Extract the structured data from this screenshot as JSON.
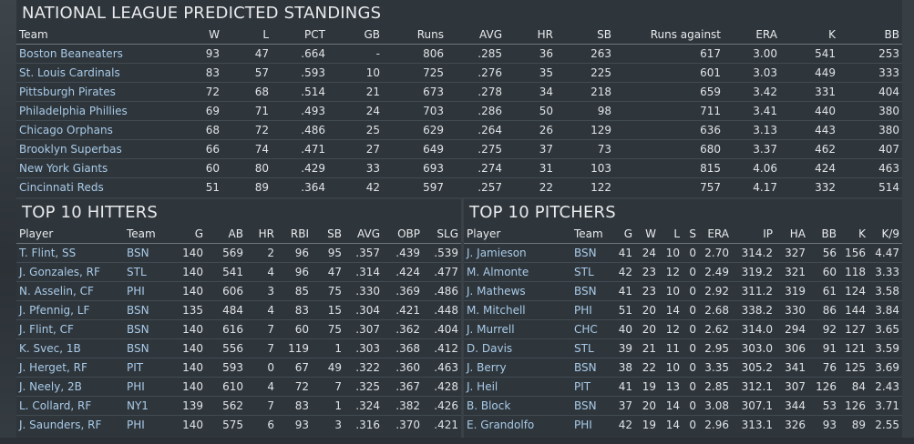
{
  "standings": {
    "title": "NATIONAL LEAGUE PREDICTED STANDINGS",
    "columns": [
      "Team",
      "W",
      "L",
      "PCT",
      "GB",
      "Runs",
      "AVG",
      "HR",
      "SB",
      "Runs against",
      "ERA",
      "K",
      "BB"
    ],
    "rows": [
      [
        "Boston Beaneaters",
        "93",
        "47",
        ".664",
        "-",
        "806",
        ".285",
        "36",
        "263",
        "617",
        "3.00",
        "541",
        "253"
      ],
      [
        "St. Louis Cardinals",
        "83",
        "57",
        ".593",
        "10",
        "725",
        ".276",
        "35",
        "225",
        "601",
        "3.03",
        "449",
        "333"
      ],
      [
        "Pittsburgh Pirates",
        "72",
        "68",
        ".514",
        "21",
        "673",
        ".278",
        "34",
        "218",
        "659",
        "3.42",
        "331",
        "404"
      ],
      [
        "Philadelphia Phillies",
        "69",
        "71",
        ".493",
        "24",
        "703",
        ".286",
        "50",
        "98",
        "711",
        "3.41",
        "440",
        "380"
      ],
      [
        "Chicago Orphans",
        "68",
        "72",
        ".486",
        "25",
        "629",
        ".264",
        "26",
        "129",
        "636",
        "3.13",
        "443",
        "380"
      ],
      [
        "Brooklyn Superbas",
        "66",
        "74",
        ".471",
        "27",
        "649",
        ".275",
        "37",
        "73",
        "680",
        "3.37",
        "462",
        "407"
      ],
      [
        "New York Giants",
        "60",
        "80",
        ".429",
        "33",
        "693",
        ".274",
        "31",
        "103",
        "815",
        "4.06",
        "424",
        "463"
      ],
      [
        "Cincinnati Reds",
        "51",
        "89",
        ".364",
        "42",
        "597",
        ".257",
        "22",
        "122",
        "757",
        "4.17",
        "332",
        "514"
      ]
    ]
  },
  "hitters": {
    "title": "TOP 10 HITTERS",
    "columns": [
      "Player",
      "Team",
      "G",
      "AB",
      "HR",
      "RBI",
      "SB",
      "AVG",
      "OBP",
      "SLG"
    ],
    "rows": [
      [
        "T. Flint, SS",
        "BSN",
        "140",
        "569",
        "2",
        "96",
        "95",
        ".357",
        ".439",
        ".539"
      ],
      [
        "J. Gonzales, RF",
        "STL",
        "140",
        "541",
        "4",
        "96",
        "47",
        ".314",
        ".424",
        ".477"
      ],
      [
        "N. Asselin, CF",
        "PHI",
        "140",
        "606",
        "3",
        "85",
        "75",
        ".330",
        ".369",
        ".486"
      ],
      [
        "J. Pfennig, LF",
        "BSN",
        "135",
        "484",
        "4",
        "83",
        "15",
        ".304",
        ".421",
        ".448"
      ],
      [
        "J. Flint, CF",
        "BSN",
        "140",
        "616",
        "7",
        "60",
        "75",
        ".307",
        ".362",
        ".404"
      ],
      [
        "K. Svec, 1B",
        "BSN",
        "140",
        "556",
        "7",
        "119",
        "1",
        ".303",
        ".368",
        ".412"
      ],
      [
        "J. Herget, RF",
        "PIT",
        "140",
        "593",
        "0",
        "67",
        "49",
        ".322",
        ".360",
        ".463"
      ],
      [
        "J. Neely, 2B",
        "PHI",
        "140",
        "610",
        "4",
        "72",
        "7",
        ".325",
        ".367",
        ".428"
      ],
      [
        "L. Collard, RF",
        "NY1",
        "139",
        "562",
        "7",
        "83",
        "1",
        ".324",
        ".382",
        ".426"
      ],
      [
        "J. Saunders, RF",
        "PHI",
        "140",
        "575",
        "6",
        "93",
        "3",
        ".316",
        ".370",
        ".421"
      ]
    ]
  },
  "pitchers": {
    "title": "TOP 10 PITCHERS",
    "columns": [
      "Player",
      "Team",
      "G",
      "W",
      "L",
      "S",
      "ERA",
      "IP",
      "HA",
      "BB",
      "K",
      "K/9"
    ],
    "rows": [
      [
        "J. Jamieson",
        "BSN",
        "41",
        "24",
        "10",
        "0",
        "2.70",
        "314.2",
        "327",
        "56",
        "156",
        "4.47"
      ],
      [
        "M. Almonte",
        "STL",
        "42",
        "23",
        "12",
        "0",
        "2.49",
        "319.2",
        "321",
        "60",
        "118",
        "3.33"
      ],
      [
        "J. Mathews",
        "BSN",
        "41",
        "23",
        "10",
        "0",
        "2.92",
        "311.2",
        "319",
        "61",
        "124",
        "3.58"
      ],
      [
        "M. Mitchell",
        "PHI",
        "51",
        "20",
        "14",
        "0",
        "2.68",
        "338.2",
        "330",
        "86",
        "144",
        "3.84"
      ],
      [
        "J. Murrell",
        "CHC",
        "40",
        "20",
        "12",
        "0",
        "2.62",
        "314.0",
        "294",
        "92",
        "127",
        "3.65"
      ],
      [
        "D. Davis",
        "STL",
        "39",
        "21",
        "11",
        "0",
        "2.95",
        "303.0",
        "306",
        "91",
        "121",
        "3.59"
      ],
      [
        "J. Berry",
        "BSN",
        "38",
        "22",
        "10",
        "0",
        "3.35",
        "305.2",
        "341",
        "76",
        "125",
        "3.69"
      ],
      [
        "J. Heil",
        "PIT",
        "41",
        "19",
        "13",
        "0",
        "2.85",
        "312.1",
        "307",
        "126",
        "84",
        "2.43"
      ],
      [
        "B. Block",
        "BSN",
        "37",
        "20",
        "14",
        "0",
        "3.08",
        "307.1",
        "344",
        "53",
        "126",
        "3.71"
      ],
      [
        "E. Grandolfo",
        "PHI",
        "42",
        "19",
        "14",
        "0",
        "2.96",
        "313.1",
        "326",
        "93",
        "89",
        "2.55"
      ]
    ]
  }
}
